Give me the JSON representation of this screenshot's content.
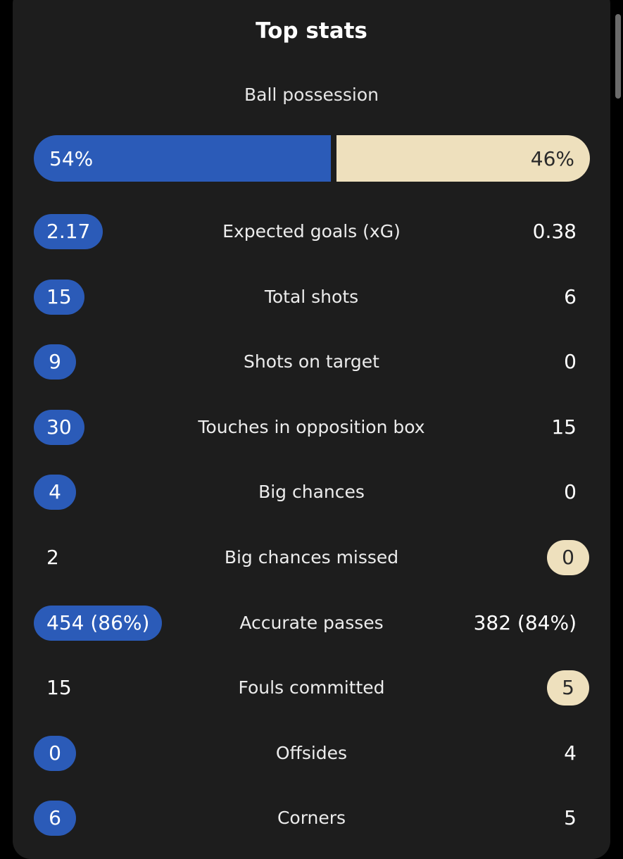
{
  "header": {
    "title": "Top stats"
  },
  "possession": {
    "label": "Ball possession",
    "home": "54%",
    "away": "46%",
    "home_fraction": 0.54
  },
  "stats": [
    {
      "label": "Expected goals (xG)",
      "home": "2.17",
      "away": "0.38",
      "highlight": "home"
    },
    {
      "label": "Total shots",
      "home": "15",
      "away": "6",
      "highlight": "home"
    },
    {
      "label": "Shots on target",
      "home": "9",
      "away": "0",
      "highlight": "home"
    },
    {
      "label": "Touches in opposition box",
      "home": "30",
      "away": "15",
      "highlight": "home"
    },
    {
      "label": "Big chances",
      "home": "4",
      "away": "0",
      "highlight": "home"
    },
    {
      "label": "Big chances missed",
      "home": "2",
      "away": "0",
      "highlight": "away"
    },
    {
      "label": "Accurate passes",
      "home": "454 (86%)",
      "away": "382 (84%)",
      "highlight": "home"
    },
    {
      "label": "Fouls committed",
      "home": "15",
      "away": "5",
      "highlight": "away"
    },
    {
      "label": "Offsides",
      "home": "0",
      "away": "4",
      "highlight": "home"
    },
    {
      "label": "Corners",
      "home": "6",
      "away": "5",
      "highlight": "home"
    }
  ],
  "colors": {
    "home_accent": "#2b5bb8",
    "away_accent": "#eee0bd",
    "card_background": "#1d1d1d"
  }
}
